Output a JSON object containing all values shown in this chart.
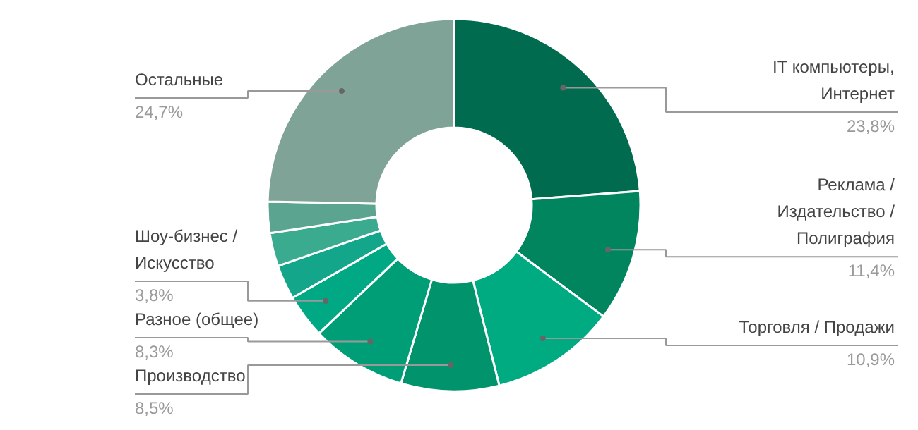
{
  "chart_data": {
    "type": "donut",
    "categories": [
      "IT компьютеры, Интернет",
      "Реклама / Издательство / Полиграфия",
      "Торговля / Продажи",
      "Производство",
      "Разное (общее)",
      "Шоу-бизнес / Искусство",
      null,
      null,
      null,
      "Остальные"
    ],
    "values": [
      23.8,
      11.4,
      10.9,
      8.5,
      8.3,
      3.8,
      3.0,
      2.9,
      2.7,
      24.7
    ],
    "value_labels": [
      "23,8%",
      "11,4%",
      "10,9%",
      "8,5%",
      "8,3%",
      "3,8%",
      null,
      null,
      null,
      "24,7%"
    ],
    "colors": [
      "#006b4f",
      "#00855f",
      "#00ab82",
      "#00936c",
      "#009e76",
      "#00a884",
      "#14a68a",
      "#3aab8e",
      "#5aa490",
      "#7fa497"
    ]
  }
}
